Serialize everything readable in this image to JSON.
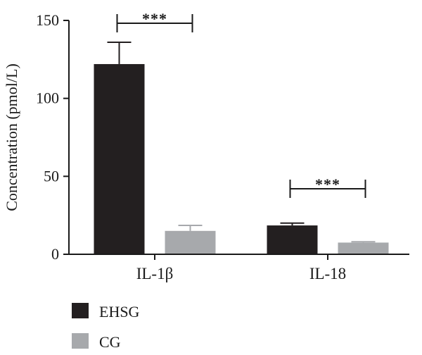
{
  "chart_data": {
    "type": "bar",
    "ylabel": "Concentration (pmol/L)",
    "xlabel": "",
    "title": "",
    "ylim": [
      0,
      150
    ],
    "yticks": [
      0,
      50,
      100,
      150
    ],
    "categories": [
      "IL-1β",
      "IL-18"
    ],
    "series": [
      {
        "name": "EHSG",
        "values": [
          122,
          18.5
        ],
        "errors": [
          14,
          1.5
        ],
        "color": "#231f20"
      },
      {
        "name": "CG",
        "values": [
          15,
          7.5
        ],
        "errors": [
          3.5,
          0.5
        ],
        "color": "#a7a9ac"
      }
    ],
    "annotations": [
      {
        "category_index": 0,
        "text": "***"
      },
      {
        "category_index": 1,
        "text": "***"
      }
    ],
    "grid": false,
    "legend_position": "bottom-left"
  }
}
